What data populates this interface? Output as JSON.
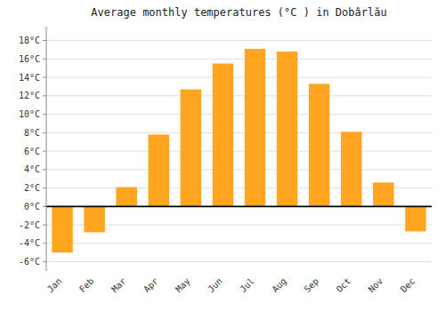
{
  "chart_data": {
    "type": "bar",
    "title": "Average monthly temperatures (°C ) in Dobârlău",
    "categories": [
      "Jan",
      "Feb",
      "Mar",
      "Apr",
      "May",
      "Jun",
      "Jul",
      "Aug",
      "Sep",
      "Oct",
      "Nov",
      "Dec"
    ],
    "values": [
      -5.0,
      -2.8,
      2.1,
      7.8,
      12.7,
      15.5,
      17.1,
      16.8,
      13.3,
      8.1,
      2.6,
      -2.7
    ],
    "color": "#FFA520",
    "ylim": [
      -7,
      19.5
    ],
    "yticks": [
      {
        "value": -6,
        "label": "-6°C"
      },
      {
        "value": -4,
        "label": "-4°C"
      },
      {
        "value": -2,
        "label": "-2°C"
      },
      {
        "value": 0,
        "label": "0°C"
      },
      {
        "value": 2,
        "label": "2°C"
      },
      {
        "value": 4,
        "label": "4°C"
      },
      {
        "value": 6,
        "label": "6°C"
      },
      {
        "value": 8,
        "label": "8°C"
      },
      {
        "value": 10,
        "label": "10°C"
      },
      {
        "value": 12,
        "label": "12°C"
      },
      {
        "value": 14,
        "label": "14°C"
      },
      {
        "value": 16,
        "label": "16°C"
      },
      {
        "value": 18,
        "label": "18°C"
      }
    ],
    "grid": true
  }
}
